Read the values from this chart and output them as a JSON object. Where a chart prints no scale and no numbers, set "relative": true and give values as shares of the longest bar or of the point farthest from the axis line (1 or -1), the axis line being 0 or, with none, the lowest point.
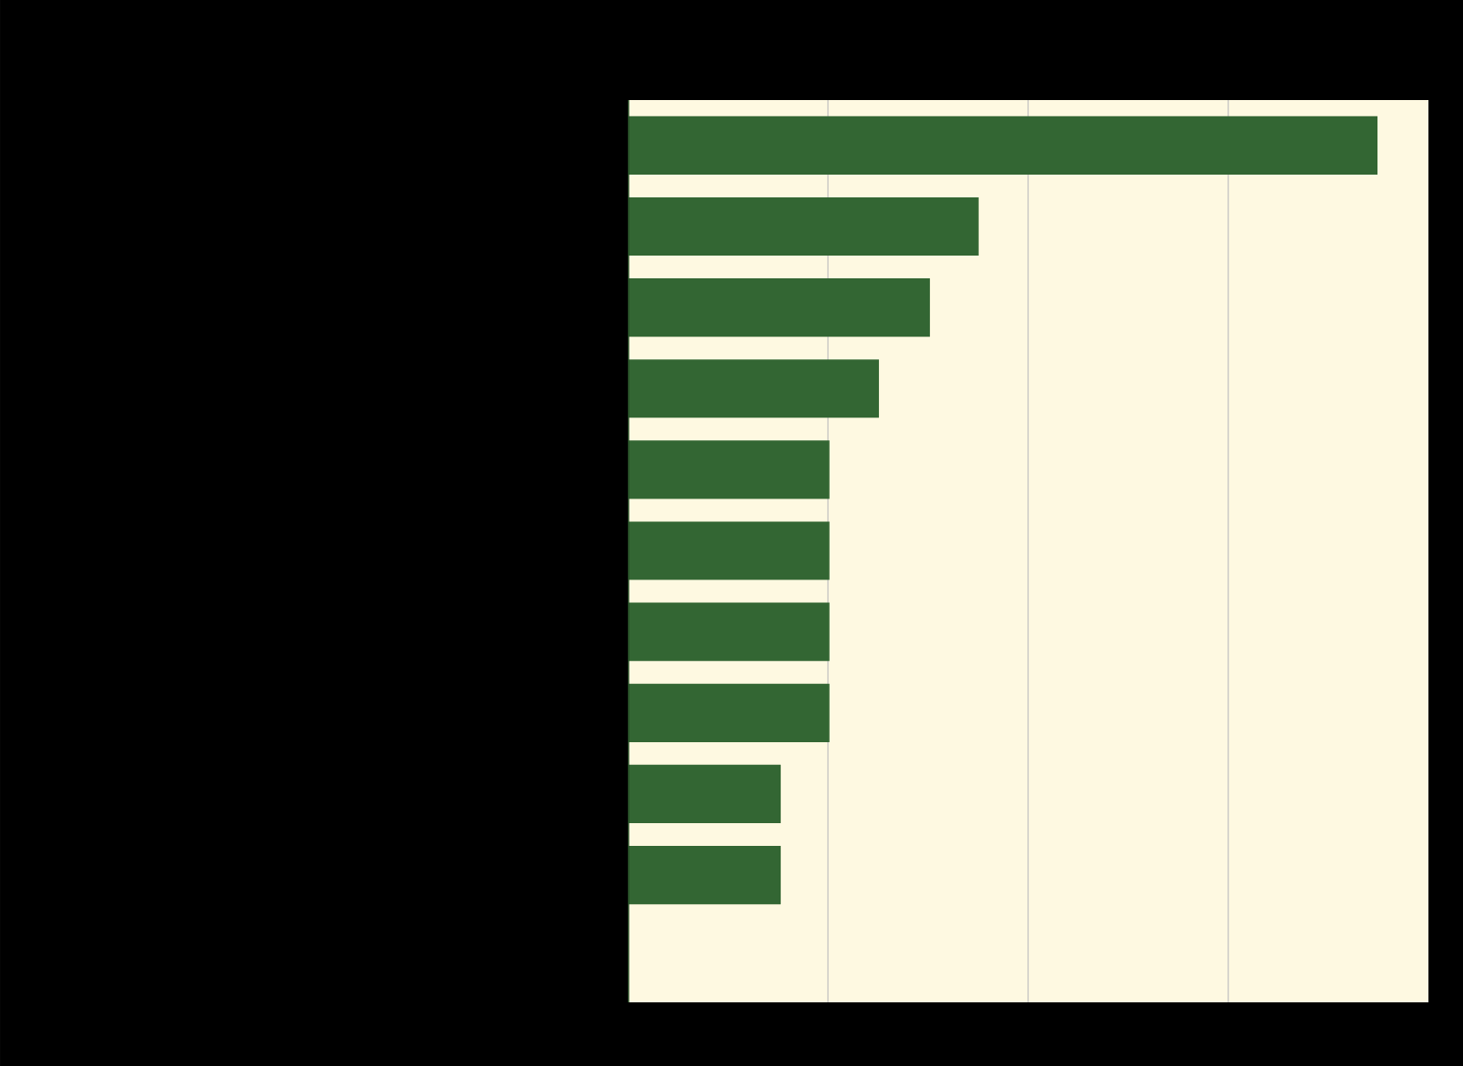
{
  "chart_data": {
    "type": "bar",
    "orientation": "horizontal",
    "relative": true,
    "categories": [
      null,
      null,
      null,
      null,
      null,
      null,
      null,
      null,
      null,
      null
    ],
    "values": [
      1,
      0.468,
      0.403,
      0.335,
      0.269,
      0.269,
      0.269,
      0.269,
      0.204,
      0.204
    ],
    "color": "#336633",
    "grid": "x"
  }
}
